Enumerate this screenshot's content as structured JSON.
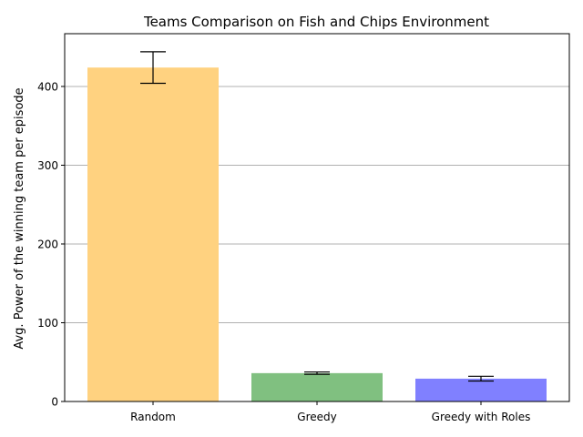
{
  "chart_data": {
    "type": "bar",
    "title": "Teams Comparison on Fish and Chips Environment",
    "xlabel": "",
    "ylabel": "Avg. Power of the winning team per episode",
    "categories": [
      "Random",
      "Greedy",
      "Greedy with Roles"
    ],
    "values": [
      424,
      36,
      29
    ],
    "errors": [
      20,
      1.5,
      3
    ],
    "colors": [
      "#ffd280",
      "#80c080",
      "#8080ff"
    ],
    "ylim": [
      0,
      467
    ],
    "yticks": [
      0,
      100,
      200,
      300,
      400
    ],
    "grid": "y",
    "legend": "none"
  }
}
